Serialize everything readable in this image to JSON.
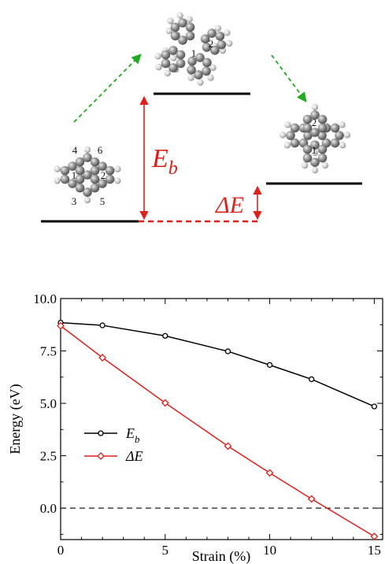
{
  "colors": {
    "eb_series": "#000000",
    "de_series": "#e0201b",
    "arrow_green": "#22aa22",
    "label_red": "#e0201b",
    "atom_carbon": "#8a8a8a",
    "atom_hydrogen": "#d6d6d6"
  },
  "diagram": {
    "barrier_label": {
      "main": "E",
      "sub": "b"
    },
    "delta_label": "ΔE",
    "left_atoms": [
      "4",
      "6",
      "1",
      "2",
      "3",
      "5"
    ],
    "top_atoms": [
      "1",
      "2"
    ],
    "right_atoms": [
      "2",
      "1"
    ]
  },
  "chart_data": {
    "type": "line",
    "xlabel": "Strain (%)",
    "ylabel": "Energy (eV)",
    "xlim": [
      0,
      15.4
    ],
    "ylim": [
      -1.5,
      10.0
    ],
    "xticks": [
      "0",
      "5",
      "10",
      "15"
    ],
    "xtick_values": [
      0,
      5,
      10,
      15
    ],
    "yticks": [
      "0.0",
      "2.5",
      "5.0",
      "7.5",
      "10.0"
    ],
    "ytick_values": [
      0,
      2.5,
      5,
      7.5,
      10
    ],
    "zero_line": true,
    "legend_position": "center-left",
    "series": [
      {
        "name": "E_b",
        "legend_main": "E",
        "legend_sub": "b",
        "marker": "circle",
        "x": [
          0,
          2,
          5,
          8,
          10,
          12,
          15
        ],
        "y": [
          8.85,
          8.72,
          8.22,
          7.48,
          6.83,
          6.15,
          4.85
        ]
      },
      {
        "name": "ΔE",
        "legend_main": "ΔE",
        "legend_sub": "",
        "marker": "diamond",
        "x": [
          0,
          2,
          5,
          8,
          10,
          12,
          15
        ],
        "y": [
          8.7,
          7.18,
          5.02,
          2.96,
          1.68,
          0.44,
          -1.35
        ]
      }
    ]
  }
}
